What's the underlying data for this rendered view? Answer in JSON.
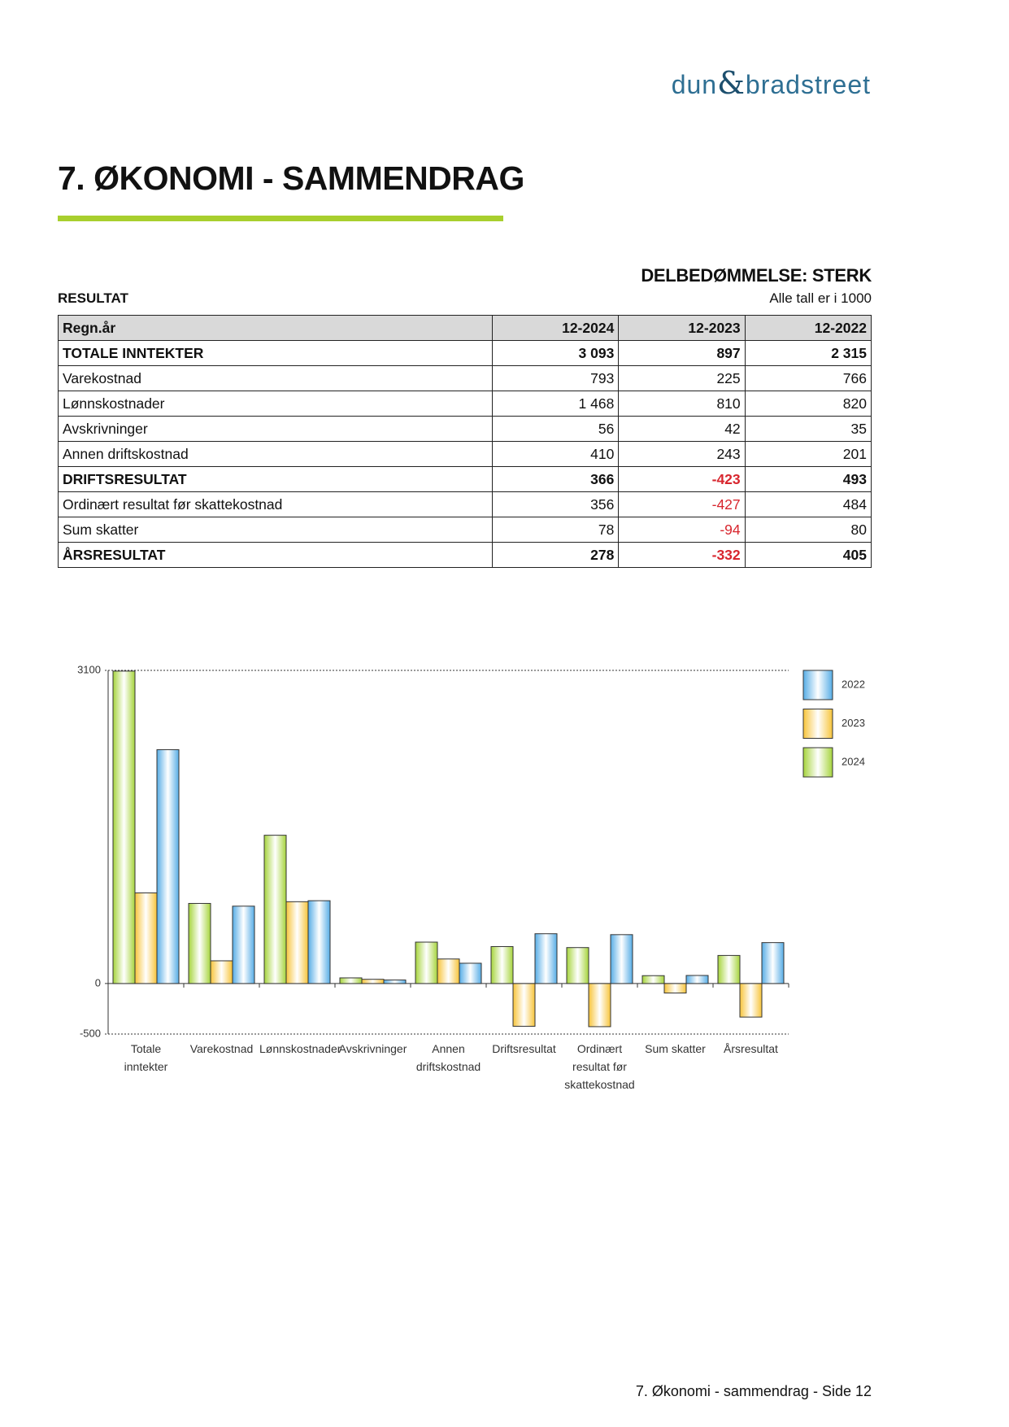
{
  "header": {
    "logo": {
      "left": "dun",
      "amp": "&",
      "right": "bradstreet"
    },
    "title": "7. ØKONOMI - SAMMENDRAG"
  },
  "rating": "DELBEDØMMELSE: STERK",
  "section": "RESULTAT",
  "units_note": "Alle tall er i 1000",
  "table": {
    "header": [
      "Regn.år",
      "12-2024",
      "12-2023",
      "12-2022"
    ],
    "rows": [
      [
        "TOTALE INNTEKTER",
        "3 093",
        "897",
        "2 315"
      ],
      [
        "Varekostnad",
        "793",
        "225",
        "766"
      ],
      [
        "Lønnskostnader",
        "1 468",
        "810",
        "820"
      ],
      [
        "Avskrivninger",
        "56",
        "42",
        "35"
      ],
      [
        "Annen driftskostnad",
        "410",
        "243",
        "201"
      ],
      [
        "DRIFTSRESULTAT",
        "366",
        "-423",
        "493"
      ],
      [
        "Ordinært resultat før skattekostnad",
        "356",
        "-427",
        "484"
      ],
      [
        "Sum skatter",
        "78",
        "-94",
        "80"
      ],
      [
        "ÅRSRESULTAT",
        "278",
        "-332",
        "405"
      ]
    ]
  },
  "chart_data": {
    "type": "bar",
    "categories": [
      "Totale inntekter",
      "Varekostnad",
      "Lønnskostnader",
      "Avskrivninger",
      "Annen driftskostnad",
      "Driftsresultat",
      "Ordinært resultat før skattekostnad",
      "Sum skatter",
      "Årsresultat"
    ],
    "series": [
      {
        "name": "2024",
        "color": "#a6d43c",
        "values": [
          3093,
          793,
          1468,
          56,
          410,
          366,
          356,
          78,
          278
        ]
      },
      {
        "name": "2023",
        "color": "#f7c43a",
        "values": [
          897,
          225,
          810,
          42,
          243,
          -423,
          -427,
          -94,
          -332
        ]
      },
      {
        "name": "2022",
        "color": "#56ade6",
        "values": [
          2315,
          766,
          820,
          35,
          201,
          493,
          484,
          80,
          405
        ]
      }
    ],
    "ylim": [
      -500,
      3100
    ],
    "yticks": [
      -500,
      0,
      3100
    ]
  },
  "footer": "7. Økonomi - sammendrag - Side 12"
}
